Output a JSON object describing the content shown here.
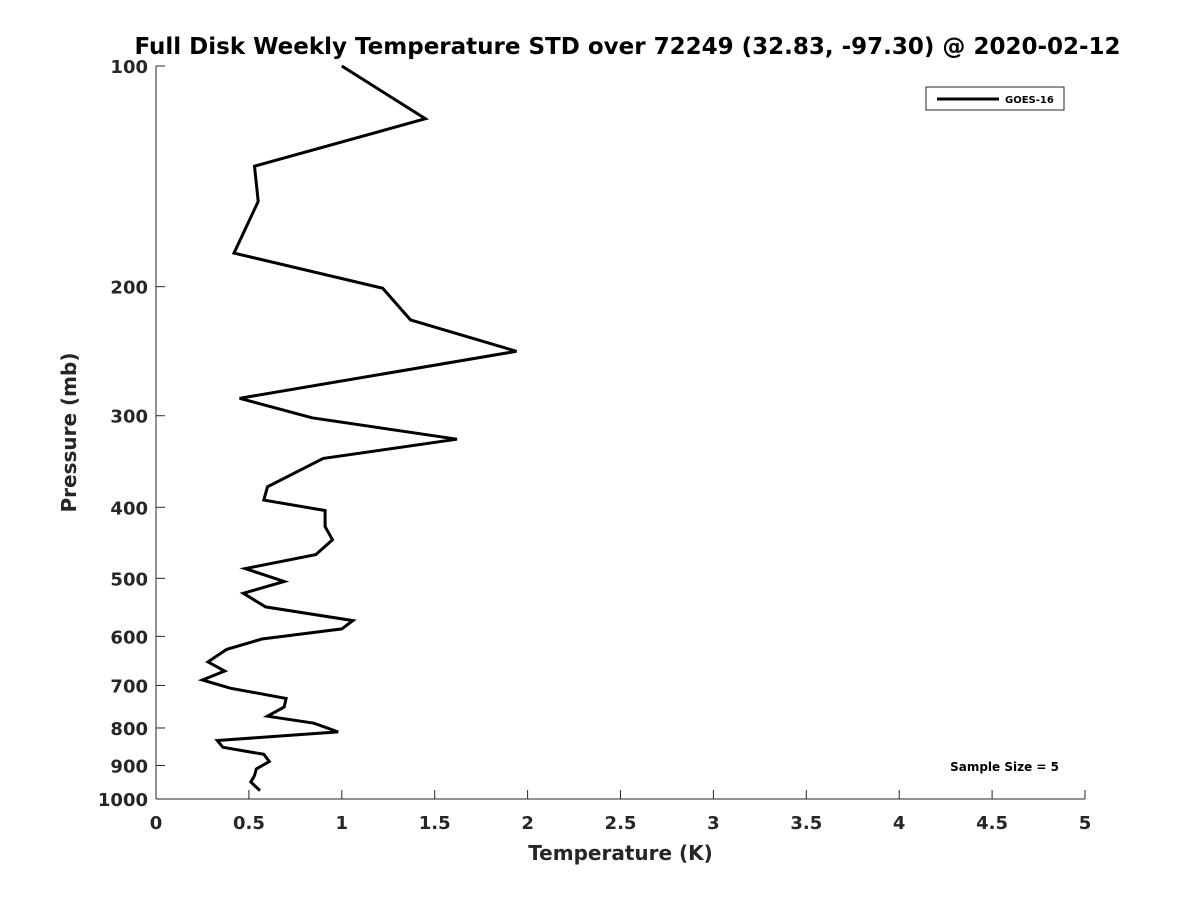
{
  "chart_data": {
    "type": "line",
    "title": "Full Disk Weekly Temperature STD over 72249 (32.83, -97.30) @ 2020-02-12",
    "xlabel": "Temperature (K)",
    "ylabel": "Pressure (mb)",
    "xlim": [
      0,
      5
    ],
    "ylim": [
      100,
      1000
    ],
    "yscale": "log",
    "yreversed": true,
    "xticks": [
      0,
      0.5,
      1,
      1.5,
      2,
      2.5,
      3,
      3.5,
      4,
      4.5,
      5
    ],
    "xtick_labels": [
      "0",
      "0.5",
      "1",
      "1.5",
      "2",
      "2.5",
      "3",
      "3.5",
      "4",
      "4.5",
      "5"
    ],
    "yticks": [
      100,
      200,
      300,
      400,
      500,
      600,
      700,
      800,
      900,
      1000
    ],
    "ytick_labels": [
      "100",
      "200",
      "300",
      "400",
      "500",
      "600",
      "700",
      "800",
      "900",
      "1000"
    ],
    "grid": false,
    "legend_position": "top-right",
    "annotation": "Sample Size = 5",
    "series": [
      {
        "name": "GOES-16",
        "color": "#000000",
        "x": [
          1.0,
          1.45,
          0.53,
          0.55,
          0.42,
          1.22,
          1.37,
          1.94,
          0.45,
          0.84,
          1.62,
          0.9,
          0.6,
          0.58,
          0.91,
          0.91,
          0.95,
          0.86,
          0.48,
          0.69,
          0.47,
          0.59,
          1.06,
          1.0,
          0.57,
          0.38,
          0.28,
          0.37,
          0.25,
          0.4,
          0.7,
          0.69,
          0.6,
          0.85,
          0.98,
          0.33,
          0.36,
          0.58,
          0.61,
          0.54,
          0.53,
          0.51,
          0.56
        ],
        "y": [
          100,
          118,
          137,
          153,
          180,
          201,
          222,
          245,
          284,
          302,
          323,
          343,
          375,
          391,
          404,
          425,
          443,
          464,
          485,
          505,
          524,
          547,
          571,
          586,
          605,
          625,
          650,
          669,
          688,
          706,
          729,
          749,
          771,
          788,
          810,
          832,
          850,
          869,
          889,
          910,
          929,
          948,
          974
        ]
      }
    ]
  }
}
